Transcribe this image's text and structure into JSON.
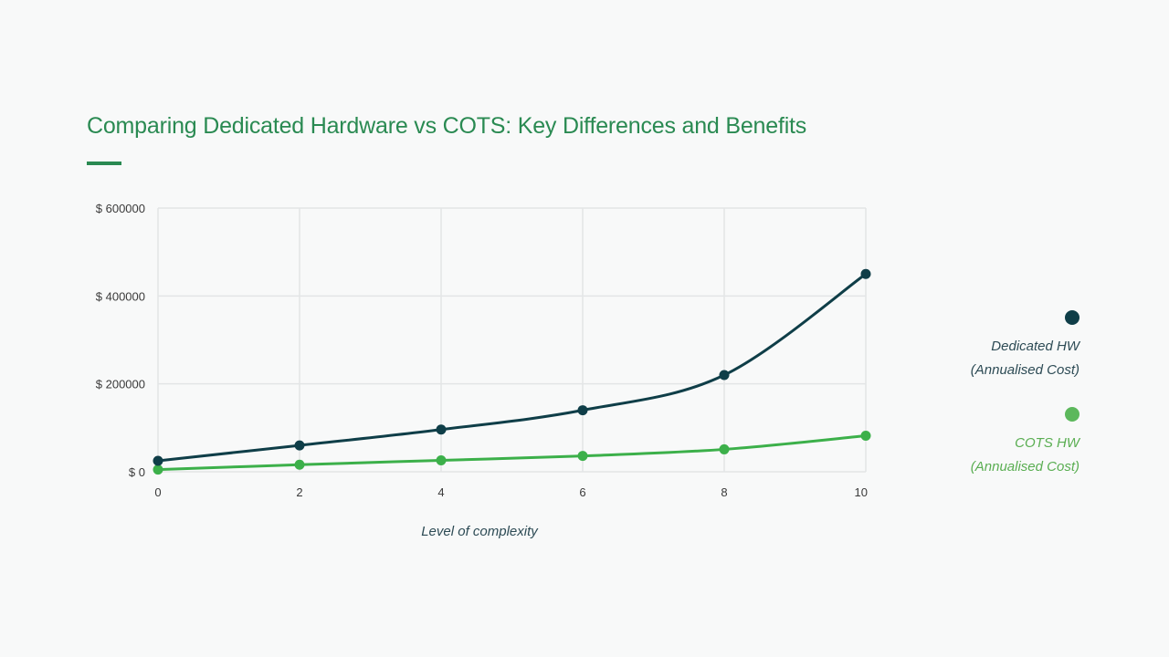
{
  "title": "Comparing Dedicated Hardware vs COTS: Key Differences and Benefits",
  "chart_data": {
    "type": "line",
    "xlabel": "Level of complexity",
    "ylabel": "",
    "x_ticks": [
      "0",
      "2",
      "4",
      "6",
      "8",
      "10"
    ],
    "y_ticks": [
      "$ 0",
      "$ 200000",
      "$ 400000",
      "$ 600000"
    ],
    "xlim": [
      0,
      10
    ],
    "ylim": [
      0,
      600000
    ],
    "grid": true,
    "legend_position": "right",
    "series": [
      {
        "name": "Dedicated HW (Annualised Cost)",
        "legend_line1": "Dedicated HW",
        "legend_line2": "(Annualised Cost)",
        "color": "#0f3e48",
        "x": [
          0,
          2,
          4,
          6,
          8,
          10
        ],
        "values": [
          25000,
          60000,
          96000,
          140000,
          220000,
          450000
        ]
      },
      {
        "name": "COTS HW (Annualised Cost)",
        "legend_line1": "COTS HW",
        "legend_line2": "(Annualised Cost)",
        "color": "#3cb04a",
        "x": [
          0,
          2,
          4,
          6,
          8,
          10
        ],
        "values": [
          5000,
          16000,
          26000,
          36000,
          51000,
          82000
        ]
      }
    ]
  }
}
